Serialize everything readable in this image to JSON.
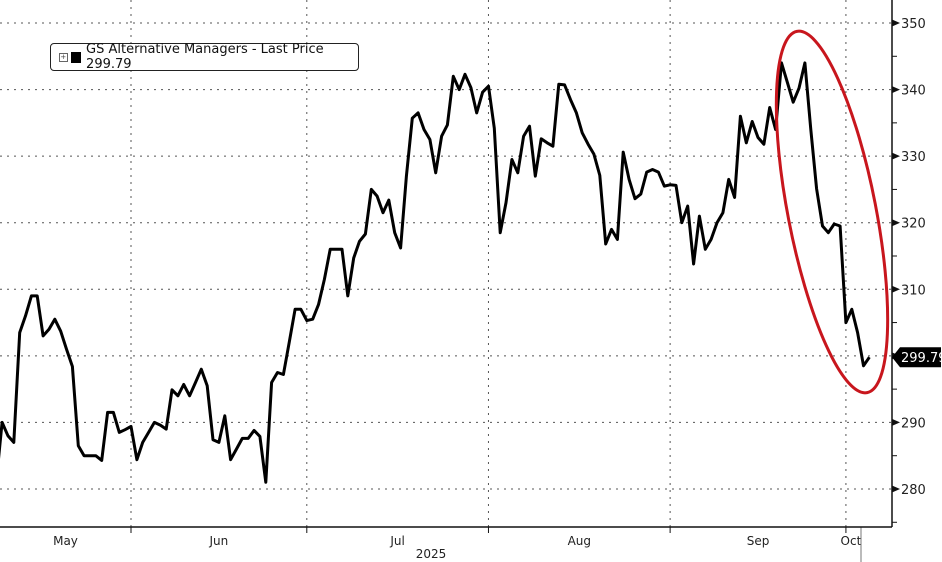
{
  "chart_data": {
    "type": "line",
    "legend": {
      "label": "GS Alternative Managers - Last Price 299.79",
      "placement": "top-left"
    },
    "series": [
      {
        "name": "GS Alternative Managers - Last Price",
        "color": "#000000",
        "points": [
          [
            "2025-05-09",
            281
          ],
          [
            "2025-05-10",
            290
          ],
          [
            "2025-05-11",
            288
          ],
          [
            "2025-05-12",
            287
          ],
          [
            "2025-05-13",
            303.5
          ],
          [
            "2025-05-14",
            306
          ],
          [
            "2025-05-15",
            309
          ],
          [
            "2025-05-16",
            309
          ],
          [
            "2025-05-17",
            303
          ],
          [
            "2025-05-18",
            304
          ],
          [
            "2025-05-19",
            305.5
          ],
          [
            "2025-05-20",
            303.7
          ],
          [
            "2025-05-21",
            301
          ],
          [
            "2025-05-22",
            298.4
          ],
          [
            "2025-05-23",
            286.5
          ],
          [
            "2025-05-24",
            285
          ],
          [
            "2025-05-25",
            285
          ],
          [
            "2025-05-26",
            285
          ],
          [
            "2025-05-27",
            284.3
          ],
          [
            "2025-05-28",
            291.5
          ],
          [
            "2025-05-29",
            291.5
          ],
          [
            "2025-05-30",
            288.5
          ],
          [
            "2025-05-31",
            288.9
          ],
          [
            "2025-06-01",
            289.4
          ],
          [
            "2025-06-02",
            284.4
          ],
          [
            "2025-06-03",
            287
          ],
          [
            "2025-06-04",
            288.5
          ],
          [
            "2025-06-05",
            290
          ],
          [
            "2025-06-06",
            289.6
          ],
          [
            "2025-06-07",
            289
          ],
          [
            "2025-06-08",
            294.9
          ],
          [
            "2025-06-09",
            294
          ],
          [
            "2025-06-10",
            295.7
          ],
          [
            "2025-06-11",
            294
          ],
          [
            "2025-06-12",
            296
          ],
          [
            "2025-06-13",
            298
          ],
          [
            "2025-06-14",
            295.5
          ],
          [
            "2025-06-15",
            287.4
          ],
          [
            "2025-06-16",
            287
          ],
          [
            "2025-06-17",
            291
          ],
          [
            "2025-06-18",
            284.4
          ],
          [
            "2025-06-19",
            286
          ],
          [
            "2025-06-20",
            287.6
          ],
          [
            "2025-06-21",
            287.6
          ],
          [
            "2025-06-22",
            288.8
          ],
          [
            "2025-06-23",
            287.9
          ],
          [
            "2025-06-24",
            281
          ],
          [
            "2025-06-25",
            296
          ],
          [
            "2025-06-26",
            297.5
          ],
          [
            "2025-06-27",
            297.2
          ],
          [
            "2025-06-28",
            302
          ],
          [
            "2025-06-29",
            307
          ],
          [
            "2025-06-30",
            307
          ],
          [
            "2025-07-01",
            305.3
          ],
          [
            "2025-07-02",
            305.5
          ],
          [
            "2025-07-03",
            307.7
          ],
          [
            "2025-07-04",
            311.5
          ],
          [
            "2025-07-05",
            316
          ],
          [
            "2025-07-06",
            316
          ],
          [
            "2025-07-07",
            316
          ],
          [
            "2025-07-08",
            309
          ],
          [
            "2025-07-09",
            314.7
          ],
          [
            "2025-07-10",
            317.2
          ],
          [
            "2025-07-11",
            318.3
          ],
          [
            "2025-07-12",
            325
          ],
          [
            "2025-07-13",
            324
          ],
          [
            "2025-07-14",
            321.5
          ],
          [
            "2025-07-15",
            323.4
          ],
          [
            "2025-07-16",
            318.5
          ],
          [
            "2025-07-17",
            316.2
          ],
          [
            "2025-07-18",
            327
          ],
          [
            "2025-07-19",
            335.7
          ],
          [
            "2025-07-20",
            336.5
          ],
          [
            "2025-07-21",
            334
          ],
          [
            "2025-07-22",
            332.5
          ],
          [
            "2025-07-23",
            327.5
          ],
          [
            "2025-07-24",
            333
          ],
          [
            "2025-07-25",
            334.7
          ],
          [
            "2025-07-26",
            342
          ],
          [
            "2025-07-27",
            340
          ],
          [
            "2025-07-28",
            342.3
          ],
          [
            "2025-07-29",
            340.3
          ],
          [
            "2025-07-30",
            336.5
          ],
          [
            "2025-07-31",
            339.6
          ],
          [
            "2025-08-01",
            340.5
          ],
          [
            "2025-08-02",
            334.2
          ],
          [
            "2025-08-03",
            318.5
          ],
          [
            "2025-08-04",
            323
          ],
          [
            "2025-08-05",
            329.5
          ],
          [
            "2025-08-06",
            327.5
          ],
          [
            "2025-08-07",
            333
          ],
          [
            "2025-08-08",
            334.5
          ],
          [
            "2025-08-09",
            327
          ],
          [
            "2025-08-10",
            332.6
          ],
          [
            "2025-08-11",
            332
          ],
          [
            "2025-08-12",
            331.5
          ],
          [
            "2025-08-13",
            340.8
          ],
          [
            "2025-08-14",
            340.7
          ],
          [
            "2025-08-15",
            338.5
          ],
          [
            "2025-08-16",
            336.5
          ],
          [
            "2025-08-17",
            333.5
          ],
          [
            "2025-08-18",
            331.8
          ],
          [
            "2025-08-19",
            330.3
          ],
          [
            "2025-08-20",
            327.1
          ],
          [
            "2025-08-21",
            316.8
          ],
          [
            "2025-08-22",
            319
          ],
          [
            "2025-08-23",
            317.5
          ],
          [
            "2025-08-24",
            330.6
          ],
          [
            "2025-08-25",
            326.5
          ],
          [
            "2025-08-26",
            323.6
          ],
          [
            "2025-08-27",
            324.3
          ],
          [
            "2025-08-28",
            327.6
          ],
          [
            "2025-08-29",
            328
          ],
          [
            "2025-08-30",
            327.6
          ],
          [
            "2025-08-31",
            325.5
          ],
          [
            "2025-09-01",
            325.7
          ],
          [
            "2025-09-02",
            325.6
          ],
          [
            "2025-09-03",
            320
          ],
          [
            "2025-09-04",
            322.5
          ],
          [
            "2025-09-05",
            313.8
          ],
          [
            "2025-09-06",
            321
          ],
          [
            "2025-09-07",
            316
          ],
          [
            "2025-09-08",
            317.5
          ],
          [
            "2025-09-09",
            320
          ],
          [
            "2025-09-10",
            321.5
          ],
          [
            "2025-09-11",
            326.5
          ],
          [
            "2025-09-12",
            323.8
          ],
          [
            "2025-09-13",
            336
          ],
          [
            "2025-09-14",
            332
          ],
          [
            "2025-09-15",
            335.2
          ],
          [
            "2025-09-16",
            332.8
          ],
          [
            "2025-09-17",
            331.8
          ],
          [
            "2025-09-18",
            337.3
          ],
          [
            "2025-09-19",
            334
          ],
          [
            "2025-09-20",
            344
          ],
          [
            "2025-09-21",
            341.1
          ],
          [
            "2025-09-22",
            338.1
          ],
          [
            "2025-09-23",
            340.2
          ],
          [
            "2025-09-24",
            344
          ],
          [
            "2025-09-25",
            334
          ],
          [
            "2025-09-26",
            325.1
          ],
          [
            "2025-09-27",
            319.5
          ],
          [
            "2025-09-28",
            318.5
          ],
          [
            "2025-09-29",
            319.8
          ],
          [
            "2025-09-30",
            319.5
          ],
          [
            "2025-10-01",
            305
          ],
          [
            "2025-10-02",
            307
          ],
          [
            "2025-10-03",
            303.5
          ],
          [
            "2025-10-04",
            298.5
          ],
          [
            "2025-10-05",
            299.79
          ]
        ]
      }
    ],
    "x_ticks": [
      {
        "label": "May",
        "date": "2025-05-01"
      },
      {
        "label": "Jun",
        "date": "2025-06-01"
      },
      {
        "label": "Jul",
        "date": "2025-07-01"
      },
      {
        "label": "Aug",
        "date": "2025-08-01"
      },
      {
        "label": "Sep",
        "date": "2025-09-01"
      },
      {
        "label": "Oct",
        "date": "2025-10-01"
      }
    ],
    "x_year_label": "2025",
    "y_ticks": [
      280,
      290,
      300,
      310,
      320,
      330,
      340,
      350
    ],
    "ylim": [
      275,
      352
    ],
    "y_axis_side": "right",
    "grid": true,
    "last_price_tag": "299.79",
    "annotation": {
      "shape": "ellipse",
      "color": "#c8161d",
      "covers": [
        "2025-09-20",
        "2025-10-05"
      ]
    }
  }
}
